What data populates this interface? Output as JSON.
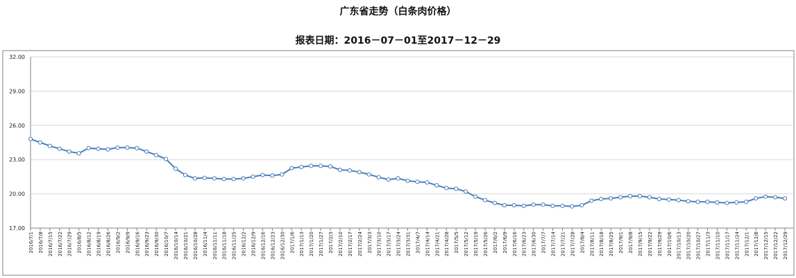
{
  "chart_data": {
    "type": "line",
    "title": "广东省走势（白条肉价格）",
    "subtitle": "报表日期：2016－07－01至2017－12－29",
    "xlabel": "",
    "ylabel": "",
    "ylim": [
      17,
      32
    ],
    "y_ticks": [
      "17.00",
      "20.00",
      "23.00",
      "26.00",
      "29.00",
      "32.00"
    ],
    "grid": true,
    "legend": "none",
    "colors": {
      "line": "#4a7ebb",
      "grid": "#d9d9d9",
      "axis": "#808080"
    },
    "x": [
      "2016/7/1",
      "2016/7/8",
      "2016/7/15",
      "2016/7/22",
      "2016/7/29",
      "2016/8/5",
      "2016/8/12",
      "2016/8/19",
      "2016/8/26",
      "2016/9/2",
      "2016/9/9",
      "2016/9/16",
      "2016/9/23",
      "2016/9/30",
      "2016/10/7",
      "2016/10/14",
      "2016/10/21",
      "2016/10/28",
      "2016/11/4",
      "2016/11/11",
      "2016/11/18",
      "2016/11/25",
      "2016/12/2",
      "2016/12/9",
      "2016/12/16",
      "2016/12/23",
      "2016/12/30",
      "2017/1/6",
      "2017/1/13",
      "2017/1/20",
      "2017/1/27",
      "2017/2/3",
      "2017/2/10",
      "2017/2/17",
      "2017/2/24",
      "2017/3/3",
      "2017/3/10",
      "2017/3/17",
      "2017/3/24",
      "2017/3/31",
      "2017/4/7",
      "2017/4/14",
      "2017/4/21",
      "2017/4/28",
      "2017/5/5",
      "2017/5/12",
      "2017/5/19",
      "2017/5/26",
      "2017/6/2",
      "2017/6/9",
      "2017/6/16",
      "2017/6/23",
      "2017/6/30",
      "2017/7/7",
      "2017/7/14",
      "2017/7/21",
      "2017/7/28",
      "2017/8/4",
      "2017/8/11",
      "2017/8/18",
      "2017/8/25",
      "2017/9/1",
      "2017/9/8",
      "2017/9/15",
      "2017/9/22",
      "2017/9/29",
      "2017/10/6",
      "2017/10/13",
      "2017/10/20",
      "2017/10/27",
      "2017/11/3",
      "2017/11/10",
      "2017/11/17",
      "2017/11/24",
      "2017/12/1",
      "2017/12/8",
      "2017/12/15",
      "2017/12/22",
      "2017/12/29"
    ],
    "series": [
      {
        "name": "",
        "values": [
          24.8,
          24.5,
          24.2,
          23.95,
          23.7,
          23.55,
          24.0,
          23.95,
          23.9,
          24.05,
          24.05,
          24.0,
          23.7,
          23.4,
          23.05,
          22.2,
          21.65,
          21.35,
          21.4,
          21.35,
          21.3,
          21.3,
          21.35,
          21.5,
          21.65,
          21.6,
          21.7,
          22.25,
          22.35,
          22.45,
          22.45,
          22.4,
          22.1,
          22.05,
          21.9,
          21.7,
          21.45,
          21.25,
          21.35,
          21.15,
          21.05,
          21.0,
          20.75,
          20.5,
          20.45,
          20.2,
          19.75,
          19.45,
          19.2,
          19.0,
          19.0,
          18.95,
          19.05,
          19.05,
          18.95,
          18.95,
          18.9,
          19.0,
          19.4,
          19.55,
          19.6,
          19.7,
          19.8,
          19.8,
          19.7,
          19.55,
          19.5,
          19.45,
          19.35,
          19.3,
          19.3,
          19.25,
          19.2,
          19.25,
          19.3,
          19.6,
          19.75,
          19.7,
          19.6
        ]
      }
    ]
  }
}
